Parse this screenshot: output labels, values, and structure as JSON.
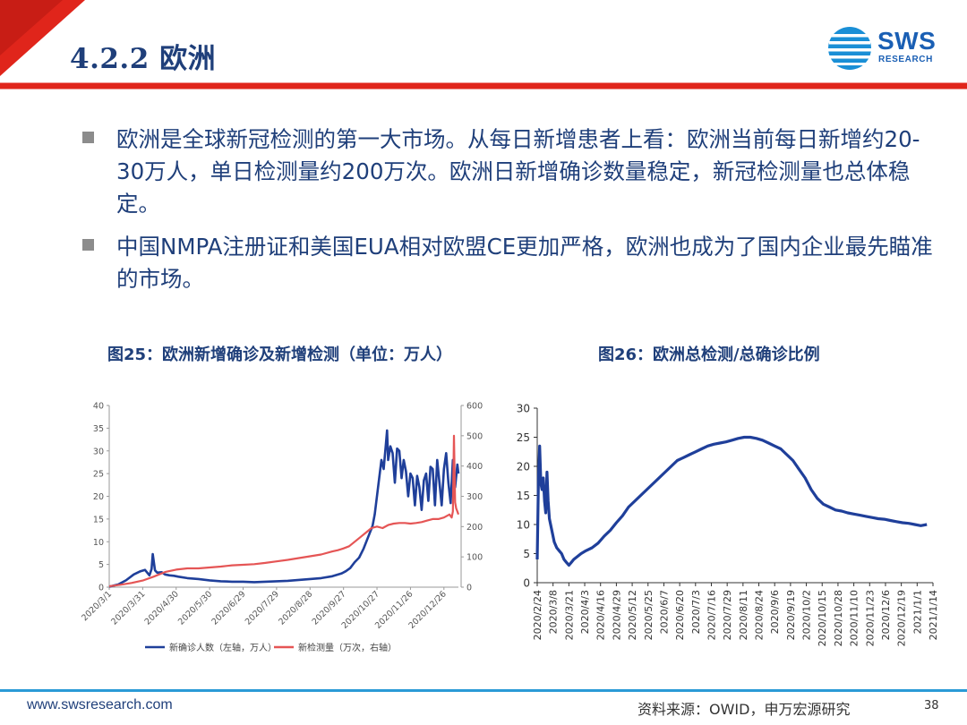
{
  "header": {
    "title": "4.2.2 欧洲",
    "logo_text": "SWS",
    "logo_sub": "RESEARCH",
    "accent_red": "#e0251b",
    "accent_blue": "#1a5fb4"
  },
  "bullets": [
    "欧洲是全球新冠检测的第一大市场。从每日新增患者上看：欧洲当前每日新增约20-30万人，单日检测量约200万次。欧洲日新增确诊数量稳定，新冠检测量也总体稳定。",
    "中国NMPA注册证和美国EUA相对欧盟CE更加严格，欧洲也成为了国内企业最先瞄准的市场。"
  ],
  "chart_titles": {
    "left": "图25：欧洲新增确诊及新增检测（单位：万人）",
    "right": "图26：欧洲总检测/总确诊比例"
  },
  "chart_data": [
    {
      "type": "line",
      "x_labels": [
        "2020/3/1",
        "2020/3/31",
        "2020/4/30",
        "2020/5/30",
        "2020/6/29",
        "2020/7/29",
        "2020/8/28",
        "2020/9/27",
        "2020/10/27",
        "2020/11/26",
        "2020/12/26"
      ],
      "y_left": {
        "ticks": [
          0,
          5,
          10,
          15,
          20,
          25,
          30,
          35,
          40
        ],
        "ylim": [
          0,
          40
        ]
      },
      "y_right": {
        "ticks": [
          0,
          100,
          200,
          300,
          400,
          500,
          600
        ],
        "ylim": [
          0,
          600
        ]
      },
      "series": [
        {
          "name": "新确诊人数（左轴，万人）",
          "axis": "left",
          "color": "#1f3f9a",
          "points": [
            [
              0,
              0.1
            ],
            [
              8,
              0.6
            ],
            [
              15,
              1.5
            ],
            [
              22,
              2.8
            ],
            [
              28,
              3.5
            ],
            [
              32,
              3.8
            ],
            [
              36,
              2.6
            ],
            [
              38,
              4.0
            ],
            [
              39,
              7.3
            ],
            [
              41,
              3.7
            ],
            [
              43,
              3.2
            ],
            [
              47,
              3.3
            ],
            [
              50,
              2.8
            ],
            [
              54,
              2.6
            ],
            [
              58,
              2.5
            ],
            [
              62,
              2.3
            ],
            [
              70,
              2.0
            ],
            [
              80,
              1.8
            ],
            [
              90,
              1.5
            ],
            [
              100,
              1.3
            ],
            [
              110,
              1.2
            ],
            [
              120,
              1.2
            ],
            [
              130,
              1.1
            ],
            [
              140,
              1.2
            ],
            [
              150,
              1.3
            ],
            [
              160,
              1.4
            ],
            [
              170,
              1.6
            ],
            [
              180,
              1.8
            ],
            [
              190,
              2.0
            ],
            [
              200,
              2.4
            ],
            [
              208,
              3.0
            ],
            [
              212,
              3.5
            ],
            [
              216,
              4.2
            ],
            [
              220,
              5.5
            ],
            [
              224,
              6.5
            ],
            [
              228,
              8.5
            ],
            [
              232,
              11.0
            ],
            [
              236,
              13.5
            ],
            [
              238,
              16.0
            ],
            [
              240,
              20.0
            ],
            [
              242,
              24.0
            ],
            [
              244,
              28.0
            ],
            [
              246,
              26.0
            ],
            [
              248,
              31.5
            ],
            [
              249,
              34.5
            ],
            [
              250,
              28.0
            ],
            [
              252,
              31.0
            ],
            [
              254,
              29.5
            ],
            [
              256,
              23.0
            ],
            [
              258,
              30.5
            ],
            [
              260,
              30.0
            ],
            [
              262,
              24.0
            ],
            [
              264,
              28.0
            ],
            [
              266,
              25.5
            ],
            [
              268,
              20.0
            ],
            [
              270,
              25.0
            ],
            [
              272,
              24.0
            ],
            [
              274,
              18.0
            ],
            [
              276,
              24.5
            ],
            [
              278,
              22.0
            ],
            [
              280,
              17.0
            ],
            [
              282,
              23.5
            ],
            [
              284,
              25.0
            ],
            [
              286,
              19.0
            ],
            [
              288,
              26.5
            ],
            [
              290,
              26.0
            ],
            [
              292,
              18.0
            ],
            [
              294,
              28.0
            ],
            [
              296,
              23.0
            ],
            [
              298,
              18.0
            ],
            [
              300,
              26.0
            ],
            [
              302,
              29.5
            ],
            [
              304,
              23.0
            ],
            [
              306,
              18.5
            ],
            [
              308,
              28.0
            ],
            [
              310,
              22.0
            ],
            [
              312,
              27.0
            ],
            [
              313,
              25.0
            ]
          ]
        },
        {
          "name": "新检测量（万次，右轴）",
          "axis": "right",
          "color": "#e55555",
          "points": [
            [
              0,
              3
            ],
            [
              10,
              8
            ],
            [
              20,
              14
            ],
            [
              30,
              22
            ],
            [
              40,
              35
            ],
            [
              50,
              50
            ],
            [
              60,
              58
            ],
            [
              70,
              62
            ],
            [
              80,
              62
            ],
            [
              90,
              65
            ],
            [
              100,
              68
            ],
            [
              110,
              72
            ],
            [
              120,
              74
            ],
            [
              130,
              76
            ],
            [
              140,
              80
            ],
            [
              150,
              85
            ],
            [
              160,
              90
            ],
            [
              170,
              96
            ],
            [
              180,
              102
            ],
            [
              190,
              108
            ],
            [
              200,
              118
            ],
            [
              205,
              122
            ],
            [
              210,
              128
            ],
            [
              215,
              135
            ],
            [
              220,
              150
            ],
            [
              225,
              165
            ],
            [
              230,
              180
            ],
            [
              235,
              195
            ],
            [
              240,
              200
            ],
            [
              245,
              195
            ],
            [
              250,
              205
            ],
            [
              255,
              210
            ],
            [
              260,
              212
            ],
            [
              265,
              212
            ],
            [
              270,
              210
            ],
            [
              275,
              212
            ],
            [
              280,
              215
            ],
            [
              285,
              220
            ],
            [
              290,
              225
            ],
            [
              295,
              225
            ],
            [
              300,
              230
            ],
            [
              305,
              240
            ],
            [
              307,
              230
            ],
            [
              308,
              250
            ],
            [
              309,
              500
            ],
            [
              310,
              280
            ],
            [
              311,
              260
            ],
            [
              312,
              250
            ],
            [
              313,
              240
            ]
          ]
        }
      ]
    },
    {
      "type": "line",
      "x_labels": [
        "2020/2/24",
        "2020/3/8",
        "2020/3/21",
        "2020/4/3",
        "2020/4/16",
        "2020/4/29",
        "2020/5/12",
        "2020/5/25",
        "2020/6/7",
        "2020/6/20",
        "2020/7/3",
        "2020/7/16",
        "2020/7/29",
        "2020/8/11",
        "2020/8/24",
        "2020/9/6",
        "2020/9/19",
        "2020/10/2",
        "2020/10/15",
        "2020/10/28",
        "2020/11/10",
        "2020/11/23",
        "2020/12/6",
        "2020/12/19",
        "2021/1/1",
        "2021/1/14"
      ],
      "y": {
        "ticks": [
          0,
          5,
          10,
          15,
          20,
          25,
          30
        ],
        "ylim": [
          0,
          30
        ]
      },
      "series": [
        {
          "name": "",
          "color": "#1f3f9a",
          "points": [
            [
              0,
              4
            ],
            [
              1,
              18
            ],
            [
              2,
              23.5
            ],
            [
              3,
              17
            ],
            [
              4,
              16
            ],
            [
              5,
              18
            ],
            [
              6,
              14
            ],
            [
              7,
              12
            ],
            [
              8,
              19
            ],
            [
              9,
              14
            ],
            [
              10,
              11
            ],
            [
              12,
              9
            ],
            [
              14,
              7
            ],
            [
              16,
              6
            ],
            [
              18,
              5.5
            ],
            [
              20,
              5
            ],
            [
              22,
              4
            ],
            [
              24,
              3.5
            ],
            [
              26,
              3
            ],
            [
              28,
              3.5
            ],
            [
              30,
              4
            ],
            [
              33,
              4.5
            ],
            [
              36,
              5
            ],
            [
              40,
              5.5
            ],
            [
              45,
              6
            ],
            [
              50,
              6.8
            ],
            [
              55,
              8
            ],
            [
              60,
              9
            ],
            [
              65,
              10.3
            ],
            [
              70,
              11.5
            ],
            [
              75,
              13
            ],
            [
              80,
              14
            ],
            [
              85,
              15
            ],
            [
              90,
              16
            ],
            [
              95,
              17
            ],
            [
              100,
              18
            ],
            [
              105,
              19
            ],
            [
              110,
              20
            ],
            [
              115,
              21
            ],
            [
              120,
              21.5
            ],
            [
              125,
              22
            ],
            [
              130,
              22.5
            ],
            [
              135,
              23
            ],
            [
              140,
              23.5
            ],
            [
              145,
              23.8
            ],
            [
              150,
              24
            ],
            [
              155,
              24.2
            ],
            [
              160,
              24.5
            ],
            [
              165,
              24.8
            ],
            [
              170,
              25
            ],
            [
              175,
              25
            ],
            [
              180,
              24.8
            ],
            [
              185,
              24.5
            ],
            [
              190,
              24
            ],
            [
              195,
              23.5
            ],
            [
              200,
              23
            ],
            [
              205,
              22
            ],
            [
              210,
              21
            ],
            [
              215,
              19.5
            ],
            [
              220,
              18
            ],
            [
              225,
              16
            ],
            [
              230,
              14.5
            ],
            [
              235,
              13.5
            ],
            [
              240,
              13
            ],
            [
              245,
              12.5
            ],
            [
              250,
              12.3
            ],
            [
              255,
              12
            ],
            [
              260,
              11.8
            ],
            [
              265,
              11.6
            ],
            [
              270,
              11.4
            ],
            [
              275,
              11.2
            ],
            [
              280,
              11
            ],
            [
              285,
              10.9
            ],
            [
              290,
              10.7
            ],
            [
              295,
              10.5
            ],
            [
              300,
              10.3
            ],
            [
              305,
              10.2
            ],
            [
              310,
              10
            ],
            [
              315,
              9.8
            ],
            [
              320,
              10
            ]
          ]
        }
      ]
    }
  ],
  "footer": {
    "url": "www.swsresearch.com",
    "source": "资料来源：OWID，申万宏源研究",
    "page": "38"
  }
}
